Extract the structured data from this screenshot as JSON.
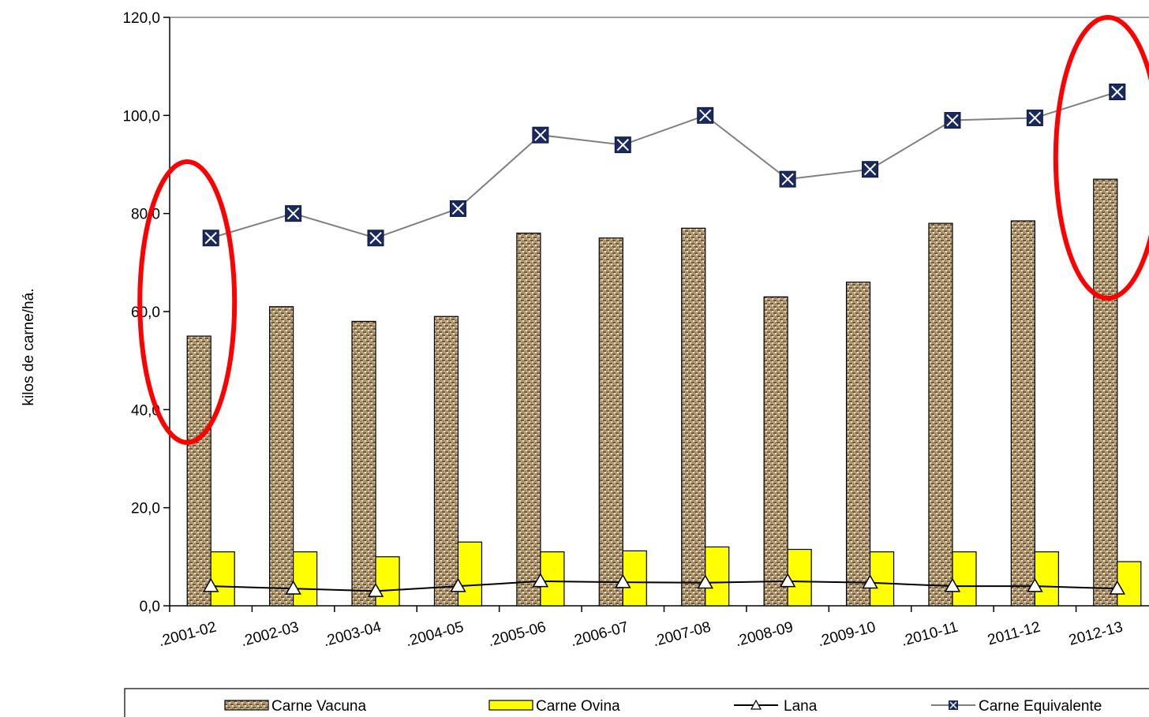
{
  "chart_data": {
    "type": "bar",
    "categories": [
      ".2001-02",
      ".2002-03",
      ".2003-04",
      ".2004-05",
      ".2005-06",
      ".2006-07",
      ".2007-08",
      ".2008-09",
      ".2009-10",
      ".2010-11",
      "2011-12",
      "2012-13"
    ],
    "ylabel": "kilos de carne/há.",
    "xlabel": "",
    "title": "",
    "ylim": [
      0,
      120
    ],
    "yticks": [
      "0,0",
      "20,0",
      "40,0",
      "60,0",
      "80,0",
      "100,0",
      "120,0"
    ],
    "grid": false,
    "legend_position": "bottom",
    "series": [
      {
        "name": "Carne Vacuna",
        "type": "bar",
        "color": "#a08a64",
        "pattern": "texture",
        "values": [
          55,
          61,
          58,
          59,
          76,
          75,
          77,
          63,
          66,
          78,
          78.5,
          87
        ]
      },
      {
        "name": "Carne Ovina",
        "type": "bar",
        "color": "#ffff00",
        "values": [
          11,
          11,
          10,
          13,
          11,
          11.2,
          12,
          11.5,
          11,
          11,
          11,
          9
        ]
      },
      {
        "name": "Lana",
        "type": "line",
        "color": "#000000",
        "marker": "triangle",
        "values": [
          4,
          3.5,
          3,
          4,
          5,
          4.8,
          4.7,
          5,
          4.7,
          4,
          4,
          3.5
        ]
      },
      {
        "name": "Carne Equivalente",
        "type": "line",
        "color": "#808080",
        "marker": "x-square",
        "marker_color": "#1a2a5e",
        "values": [
          75,
          80,
          75,
          81,
          96,
          94,
          100,
          87,
          89,
          99,
          99.5,
          104.8
        ]
      }
    ],
    "annotations": [
      {
        "type": "ellipse",
        "color": "#ff0000",
        "highlights": ".2001-02"
      },
      {
        "type": "ellipse",
        "color": "#ff0000",
        "highlights": "2012-13"
      }
    ]
  }
}
